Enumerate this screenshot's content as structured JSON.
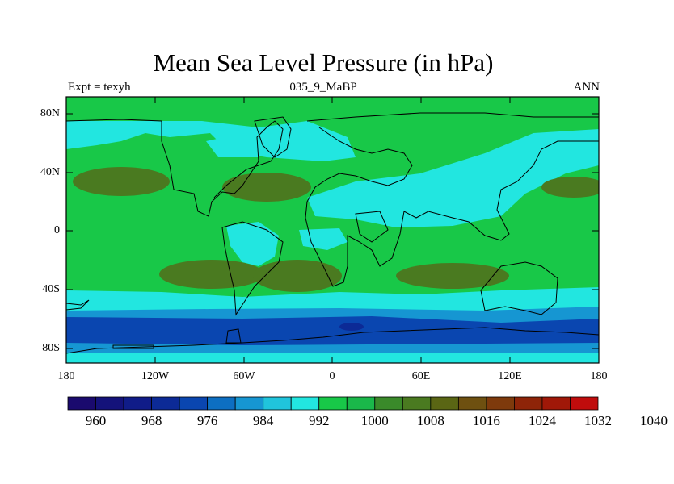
{
  "title": "Mean Sea Level Pressure (in hPa)",
  "subtitle_left": "Expt = texyh",
  "subtitle_center": "035_9_MaBP",
  "subtitle_right": "ANN",
  "y_axis_labels": [
    "80N",
    "40N",
    "0",
    "40S",
    "80S"
  ],
  "x_axis_labels": [
    "180",
    "120W",
    "60W",
    "0",
    "60E",
    "120E",
    "180"
  ],
  "colorbar": {
    "labels": [
      "960",
      "968",
      "976",
      "984",
      "992",
      "1000",
      "1008",
      "1016",
      "1024",
      "1032",
      "1040"
    ],
    "colors": [
      "#1a0a6e",
      "#14127a",
      "#101c88",
      "#0c2a96",
      "#0a46b0",
      "#0d6fc2",
      "#1696d2",
      "#20c4dc",
      "#22e6e0",
      "#18c848",
      "#1ab84a",
      "#3a8a2a",
      "#4a7a20",
      "#5a6614",
      "#6e5010",
      "#7e3a0c",
      "#8e2408",
      "#a01808",
      "#c00c0c"
    ]
  },
  "map_colors": {
    "ocean_mid": "#18c848",
    "low": "#22e6e0",
    "lower": "#1696d2",
    "lowest": "#0a46b0",
    "very_low": "#0c2a96",
    "high": "#4a7a20"
  },
  "chart_data": {
    "type": "heatmap",
    "title": "Mean Sea Level Pressure (in hPa)",
    "x_range": [
      -180,
      180
    ],
    "y_range": [
      -90,
      90
    ],
    "x_ticks": [
      "180",
      "120W",
      "60W",
      "0",
      "60E",
      "120E",
      "180"
    ],
    "y_ticks": [
      "80N",
      "40N",
      "0",
      "40S",
      "80S"
    ],
    "contour_levels": [
      960,
      964,
      968,
      972,
      976,
      980,
      984,
      988,
      992,
      996,
      1000,
      1004,
      1008,
      1012,
      1016,
      1020,
      1024,
      1028,
      1032,
      1036,
      1040
    ],
    "units": "hPa"
  }
}
